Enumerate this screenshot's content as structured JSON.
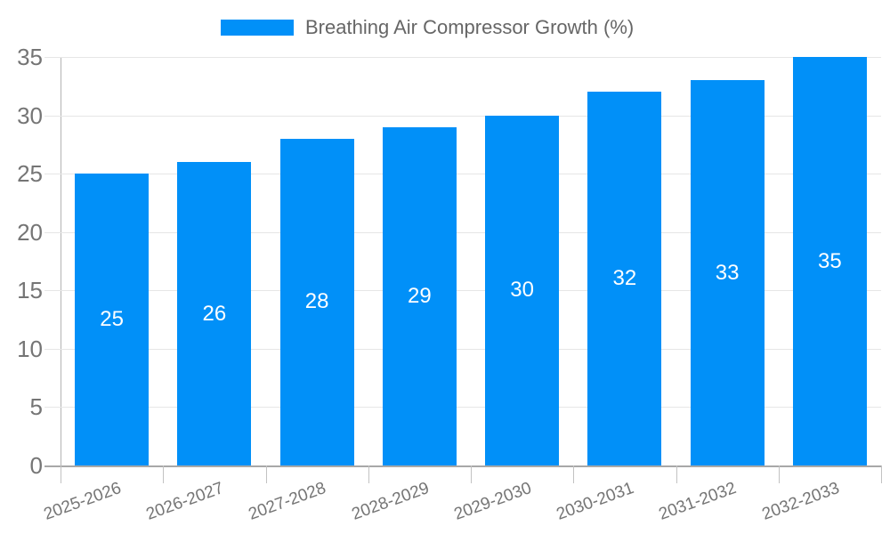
{
  "legend": {
    "label": "Breathing Air Compressor Growth (%)"
  },
  "chart_data": {
    "type": "bar",
    "title": "Breathing Air Compressor Growth (%)",
    "categories": [
      "2025-2026",
      "2026-2027",
      "2027-2028",
      "2028-2029",
      "2029-2030",
      "2030-2031",
      "2031-2032",
      "2032-2033"
    ],
    "series": [
      {
        "name": "Breathing Air Compressor Growth (%)",
        "values": [
          25,
          26,
          28,
          29,
          30,
          32,
          33,
          35
        ]
      }
    ],
    "value_labels_shown": true,
    "xlabel": "",
    "ylabel": "",
    "ylim": [
      0,
      35
    ],
    "y_ticks": [
      0,
      5,
      10,
      15,
      20,
      25,
      30,
      35
    ],
    "grid": "horizontal",
    "legend_position": "top",
    "x_label_rotation_deg": -20
  },
  "colors": {
    "bar": "#0190f8",
    "gridline": "#e6e6e6",
    "axis_text": "#757575",
    "legend_text": "#666666",
    "value_label_text": "#ffffff",
    "background": "#ffffff"
  }
}
